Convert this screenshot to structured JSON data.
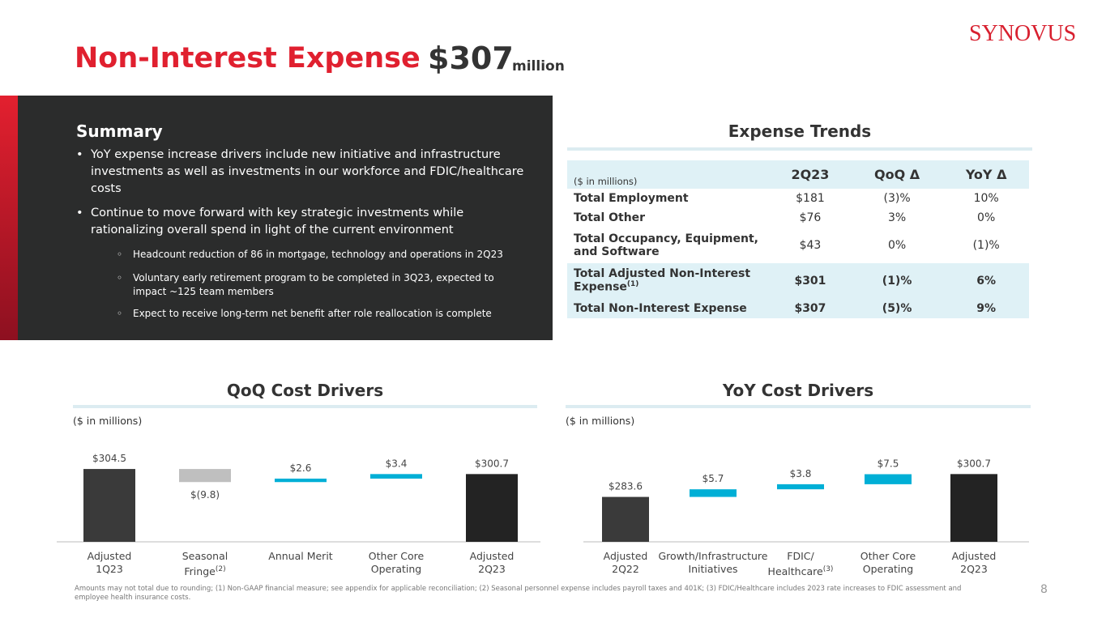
{
  "header": {
    "title": "Non-Interest Expense",
    "amount": "$307",
    "unit": "million",
    "logo": "SYNOVUS"
  },
  "summary": {
    "title": "Summary",
    "bullets": [
      "YoY expense increase drivers include new initiative and infrastructure investments as well as investments in our workforce and FDIC/healthcare costs",
      "Continue to move forward with key strategic investments while rationalizing overall spend in light of the current environment"
    ],
    "sub_bullets": [
      "Headcount reduction of 86 in mortgage, technology and operations in 2Q23",
      "Voluntary early retirement program to be completed in 3Q23, expected to impact ~125 team members",
      "Expect to receive long-term net benefit after role reallocation is complete"
    ]
  },
  "table": {
    "title": "Expense Trends",
    "header": [
      "($ in millions)",
      "2Q23",
      "QoQ Δ",
      "YoY Δ"
    ],
    "rows": [
      [
        "Total Employment",
        "$181",
        "(3)%",
        "10%"
      ],
      [
        "Total Other",
        "$76",
        "3%",
        "0%"
      ],
      [
        "Total Occupancy, Equipment, and Software",
        "$43",
        "0%",
        "(1)%"
      ],
      [
        "Total Adjusted Non-Interest Expense",
        "$301",
        "(1)%",
        "6%"
      ],
      [
        "Total Non-Interest Expense",
        "$307",
        "(5)%",
        "9%"
      ]
    ],
    "row_note": "(1)"
  },
  "chart_data": [
    {
      "type": "waterfall",
      "title": "QoQ Cost Drivers",
      "subtitle": "($ in millions)",
      "categories": [
        "Adjusted\n1Q23",
        "Seasonal\nFringe",
        "Annual Merit",
        "Other Core\nOperating",
        "Adjusted\n2Q23"
      ],
      "category_notes": [
        null,
        "(2)",
        null,
        null,
        null
      ],
      "values": [
        304.5,
        -9.8,
        2.6,
        3.4,
        300.7
      ],
      "value_labels": [
        "$304.5",
        "$(9.8)",
        "$2.6",
        "$3.4",
        "$300.7"
      ],
      "colors": [
        "#3a3a3a",
        "#bfbfbf",
        "#00afd6",
        "#00afd6",
        "#232323"
      ],
      "ylim": [
        250,
        310
      ]
    },
    {
      "type": "waterfall",
      "title": "YoY Cost Drivers",
      "subtitle": "($ in millions)",
      "categories": [
        "Adjusted\n2Q22",
        "Growth/Infrastructure\nInitiatives",
        "FDIC/\nHealthcare",
        "Other Core\nOperating",
        "Adjusted\n2Q23"
      ],
      "category_notes": [
        null,
        null,
        "(3)",
        null,
        null
      ],
      "values": [
        283.6,
        5.7,
        3.8,
        7.5,
        300.7
      ],
      "value_labels": [
        "$283.6",
        "$5.7",
        "$3.8",
        "$7.5",
        "$300.7"
      ],
      "colors": [
        "#3a3a3a",
        "#00afd6",
        "#00afd6",
        "#00afd6",
        "#232323"
      ],
      "ylim": [
        250,
        310
      ]
    }
  ],
  "footnote": "Amounts may not total due to rounding; (1) Non-GAAP financial measure; see appendix for applicable reconciliation; (2) Seasonal personnel expense includes payroll taxes and 401K; (3) FDIC/Healthcare includes 2023 rate increases to FDIC assessment and employee health insurance costs.",
  "page_number": "8"
}
